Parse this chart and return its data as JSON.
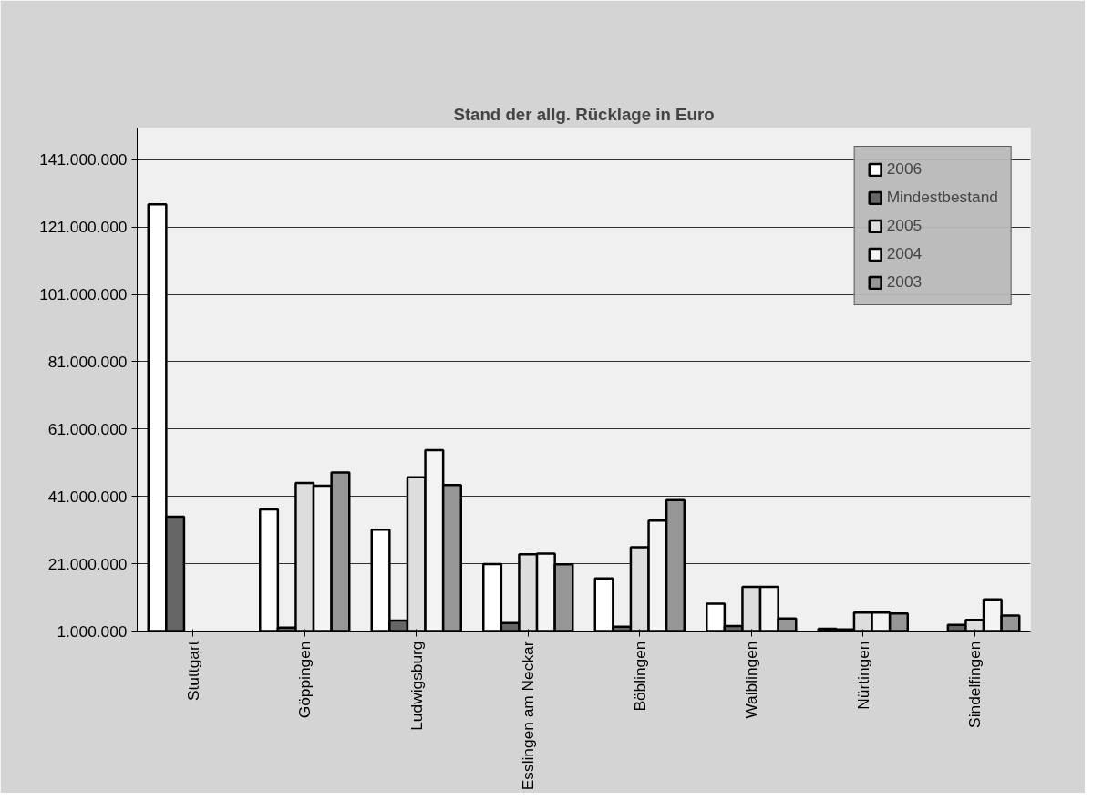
{
  "chart_data": {
    "type": "bar",
    "title": "Stand der allg. Rücklage in Euro",
    "categories": [
      "Stuttgart",
      "Göppingen",
      "Ludwigsburg",
      "Esslingen am Neckar",
      "Böblingen",
      "Waiblingen",
      "Nürtingen",
      "Sindelfingen"
    ],
    "series": [
      {
        "name": "2006",
        "color": "#ffffff",
        "values": [
          127700000,
          37100000,
          31100000,
          20900000,
          16600000,
          9100000,
          1700000,
          null
        ]
      },
      {
        "name": "Mindestbestand",
        "color": "#666666",
        "values": [
          35000000,
          2000000,
          4100000,
          3400000,
          2300000,
          2500000,
          1500000,
          2800000
        ]
      },
      {
        "name": "2005",
        "color": "#dddddd",
        "values": [
          null,
          45000000,
          46700000,
          23800000,
          25900000,
          14100000,
          6500000,
          4300000
        ]
      },
      {
        "name": "2004",
        "color": "#f4f4f4",
        "values": [
          null,
          44200000,
          54700000,
          24000000,
          33800000,
          14100000,
          6500000,
          10400000
        ]
      },
      {
        "name": "2003",
        "color": "#969696",
        "values": [
          null,
          48100000,
          44400000,
          20800000,
          39900000,
          4700000,
          6200000,
          5600000
        ]
      }
    ],
    "ylim": [
      1000000,
      150400000
    ],
    "yticks": [
      {
        "value": 1000000,
        "label": "1.000.000"
      },
      {
        "value": 21000000,
        "label": "21.000.000"
      },
      {
        "value": 41000000,
        "label": "41.000.000"
      },
      {
        "value": 61000000,
        "label": "61.000.000"
      },
      {
        "value": 81000000,
        "label": "81.000.000"
      },
      {
        "value": 101000000,
        "label": "101.000.000"
      },
      {
        "value": 121000000,
        "label": "121.000.000"
      },
      {
        "value": 141000000,
        "label": "141.000.000"
      }
    ],
    "grid": "y",
    "legend": "top right"
  }
}
